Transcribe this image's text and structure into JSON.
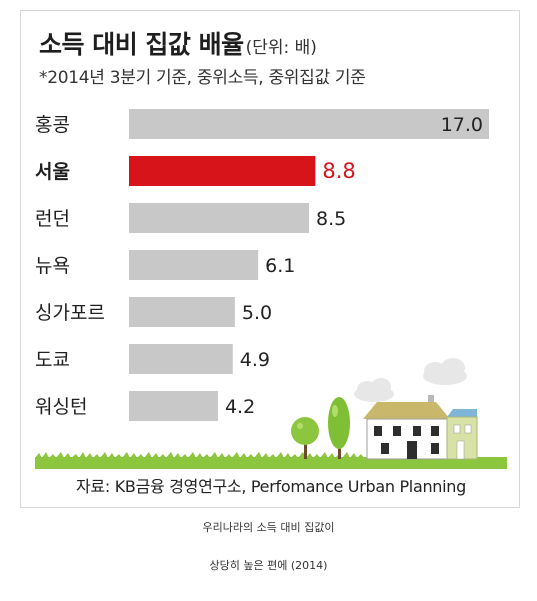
{
  "title": "소득 대비 집값 배율",
  "unit_note": "(단위: 배)",
  "subtitle": "*2014년 3분기 기준, 중위소득, 중위집값 기준",
  "source": "자료: KB금융 경영연구소, Perfomance Urban Planning",
  "captions": [
    "우리나라의 소득 대비 집값이",
    "상당히 높은 편에 (2014)"
  ],
  "colors": {
    "bar_default": "#c8c8c8",
    "bar_highlight": "#d7141a",
    "grass": "#8cc63f"
  },
  "chart_data": {
    "type": "bar",
    "orientation": "horizontal",
    "categories": [
      "홍콩",
      "서울",
      "런던",
      "뉴욕",
      "싱가포르",
      "도쿄",
      "워싱턴"
    ],
    "values": [
      17.0,
      8.8,
      8.5,
      6.1,
      5.0,
      4.9,
      4.2
    ],
    "value_labels": [
      "17.0",
      "8.8",
      "8.5",
      "6.1",
      "5.0",
      "4.9",
      "4.2"
    ],
    "highlight": "서울",
    "xlim": [
      0,
      17.0
    ],
    "grid": false,
    "legend": "none"
  }
}
